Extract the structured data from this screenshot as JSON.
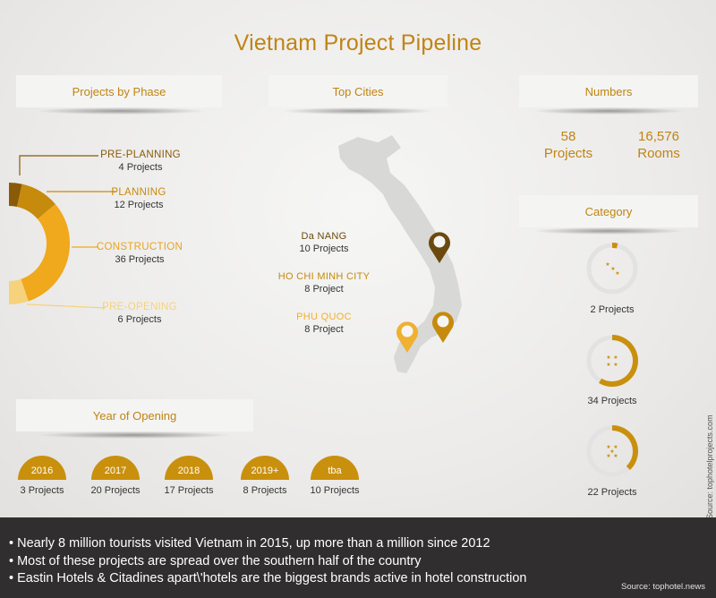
{
  "title": "Vietnam Project Pipeline",
  "sections": {
    "phase": "Projects by Phase",
    "cities": "Top Cities",
    "numbers": "Numbers",
    "category": "Category",
    "year": "Year of Opening"
  },
  "phases": [
    {
      "name": "PRE-PLANNING",
      "count": "4 Projects",
      "color": "#8a5a07",
      "value": 4
    },
    {
      "name": "PLANNING",
      "count": "12 Projects",
      "color": "#c68a0c",
      "value": 12
    },
    {
      "name": "CONSTRUCTION",
      "count": "36 Projects",
      "color": "#f0a81c",
      "value": 36
    },
    {
      "name": "PRE-OPENING",
      "count": "6 Projects",
      "color": "#f6d27c",
      "value": 6
    }
  ],
  "cities": [
    {
      "name": "Da NANG",
      "count": "10 Projects",
      "color": "#6b4a0d"
    },
    {
      "name": "HO CHI MINH CITY",
      "count": "8 Project",
      "color": "#c68a0c"
    },
    {
      "name": "PHU QUOC",
      "count": "8 Project",
      "color": "#f0b030"
    }
  ],
  "numbers": {
    "projects_value": "58",
    "projects_label": "Projects",
    "rooms_value": "16,576",
    "rooms_label": "Rooms"
  },
  "categories": [
    {
      "count": "2 Projects",
      "value": 2,
      "stars": 3
    },
    {
      "count": "34 Projects",
      "value": 34,
      "stars": 4
    },
    {
      "count": "22 Projects",
      "value": 22,
      "stars": 5
    }
  ],
  "years": [
    {
      "year": "2016",
      "count": "3 Projects"
    },
    {
      "year": "2017",
      "count": "20 Projects"
    },
    {
      "year": "2018",
      "count": "17 Projects"
    },
    {
      "year": "2019+",
      "count": "8 Projects"
    },
    {
      "year": "tba",
      "count": "10 Projects"
    }
  ],
  "vertical_source": "Source: tophotelprojects.com",
  "footer": {
    "bullets": [
      "• Nearly 8 million tourists visited Vietnam in 2015, up more than a million since 2012",
      "• Most of these projects are spread over the southern half of the country",
      "• Eastin Hotels & Citadines apart\\'hotels are the biggest brands active in hotel construction"
    ],
    "source": "Source: tophotel.news"
  },
  "colors": {
    "accent": "#c08412",
    "footer_bg": "#302e2e",
    "ring_track": "#e2e2e2"
  }
}
